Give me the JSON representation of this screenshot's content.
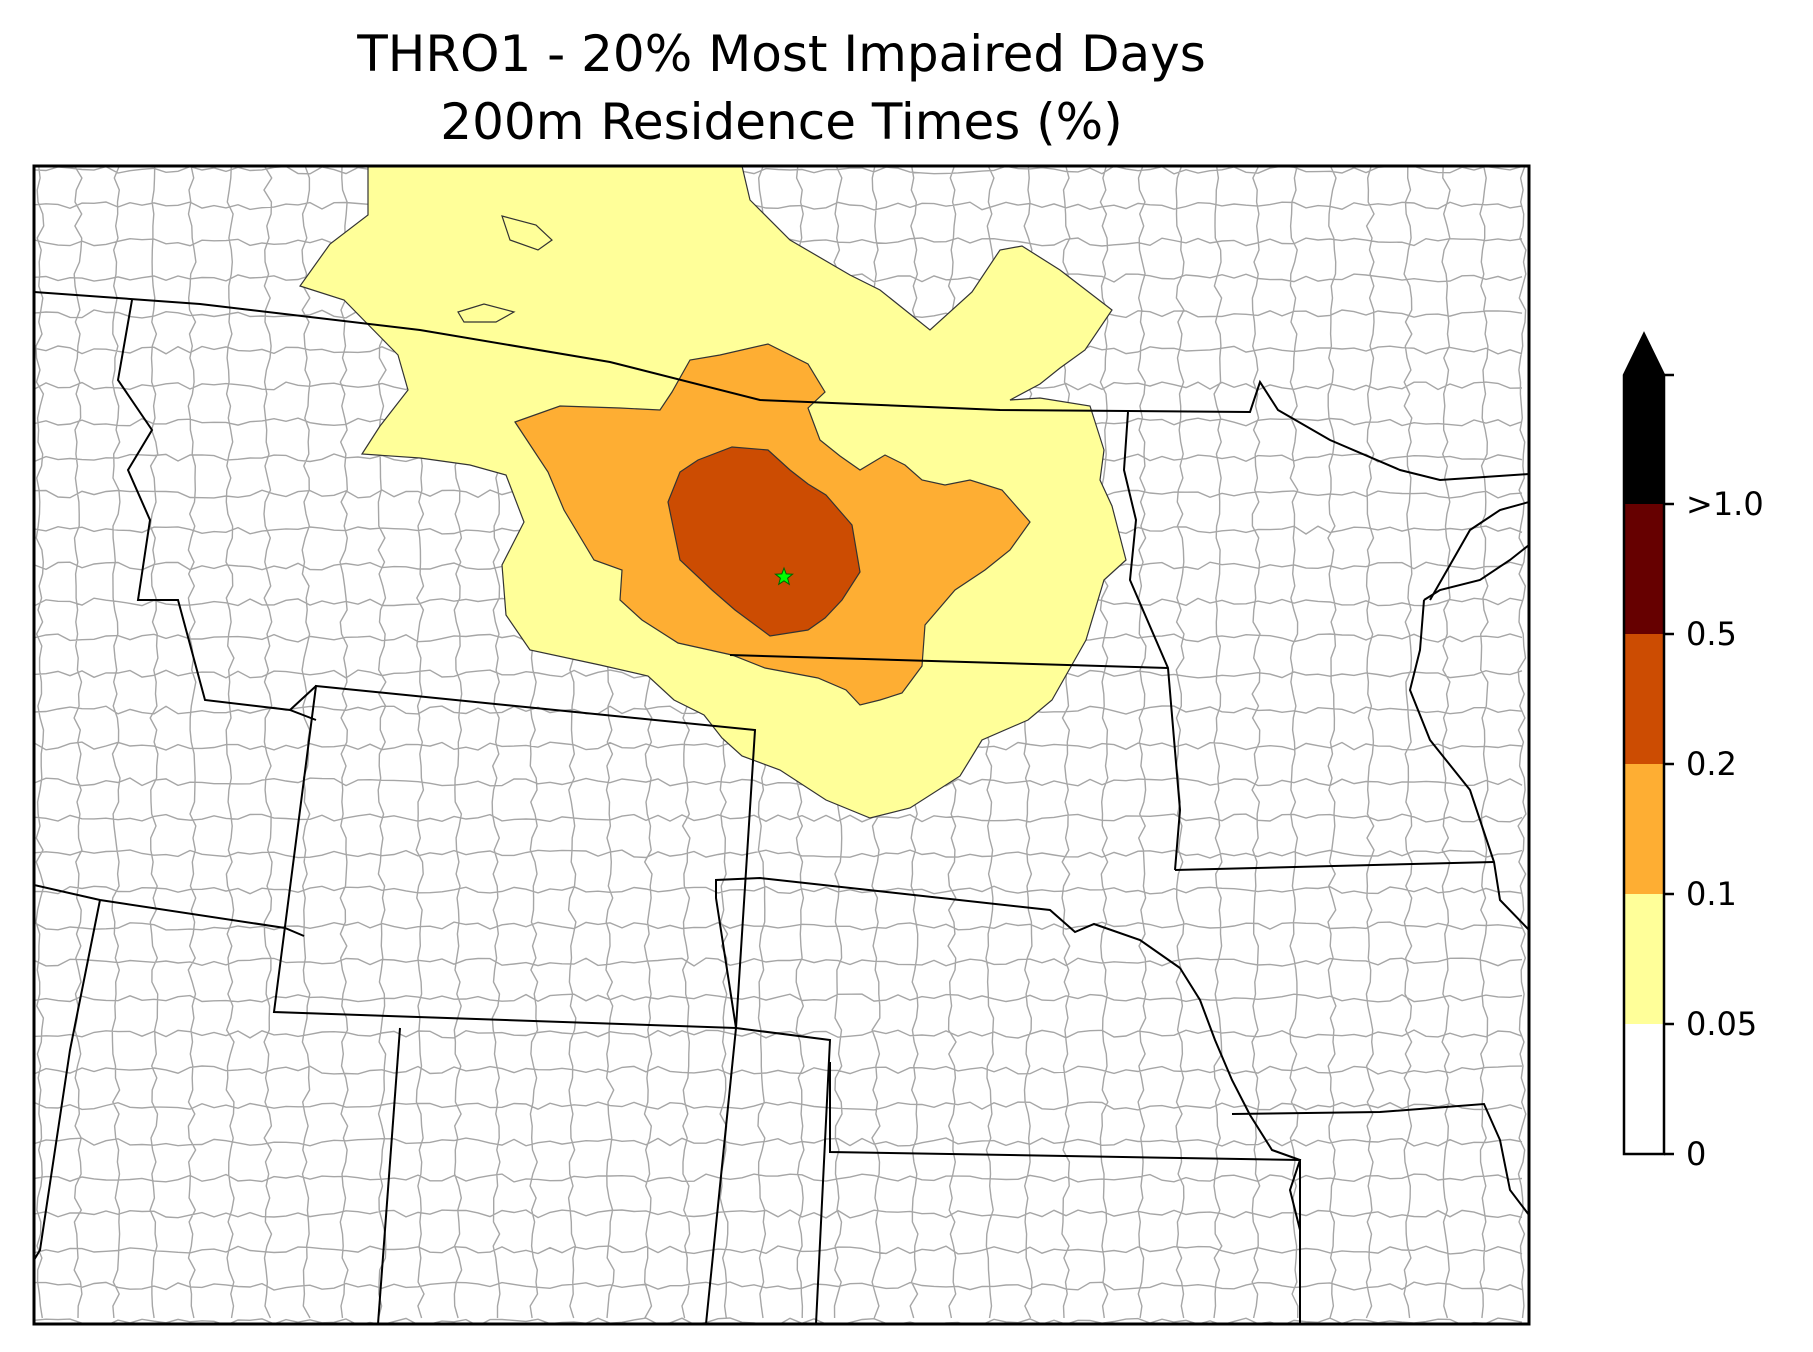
{
  "title": {
    "line1": "THRO1 - 20% Most Impaired Days",
    "line2": "200m Residence Times (%)"
  },
  "colorbar": {
    "bins": [
      {
        "from": "0",
        "to": "0.05",
        "color": "#ffffff"
      },
      {
        "from": "0.05",
        "to": "0.1",
        "color": "#ffff99"
      },
      {
        "from": "0.1",
        "to": "0.2",
        "color": "#feae33"
      },
      {
        "from": "0.2",
        "to": "0.5",
        "color": "#cc4c02"
      },
      {
        "from": "0.5",
        "to": ">1.0",
        "color": "#660000"
      },
      {
        "from": ">1.0",
        "to": "max",
        "color": "#000000"
      }
    ],
    "tick_labels": [
      "0",
      "0.05",
      "0.1",
      "0.2",
      "0.5",
      ">1.0"
    ],
    "extend": "max"
  },
  "site_marker": {
    "name": "THRO1",
    "symbol": "star",
    "color": "#00ff00"
  },
  "colors": {
    "state_border": "#000000",
    "county_border": "#a6a6a6",
    "contour_edge": "#333333"
  }
}
